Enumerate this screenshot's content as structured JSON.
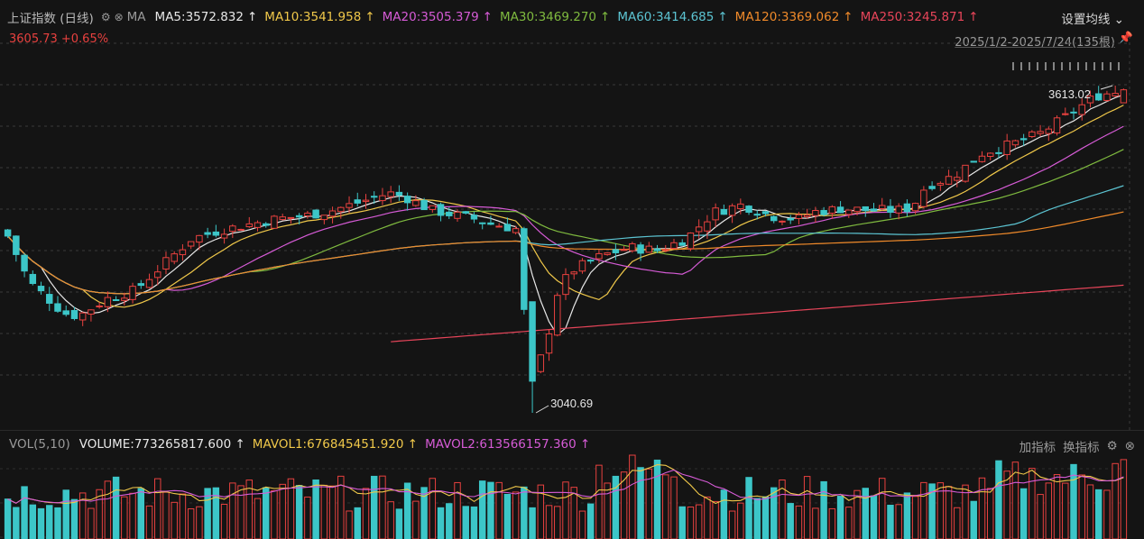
{
  "header": {
    "title": "上证指数 (日线)",
    "ma_label": "MA",
    "ma": [
      {
        "label": "MA5:3572.832",
        "color": "#e8e8e8"
      },
      {
        "label": "MA10:3541.958",
        "color": "#f0c84a"
      },
      {
        "label": "MA20:3505.379",
        "color": "#d65bd6"
      },
      {
        "label": "MA30:3469.270",
        "color": "#7fba3f"
      },
      {
        "label": "MA60:3414.685",
        "color": "#5cc4d2"
      },
      {
        "label": "MA120:3369.062",
        "color": "#f08a2a"
      },
      {
        "label": "MA250:3245.871",
        "color": "#e8455a"
      }
    ],
    "arrow": "↑",
    "settings": "设置均线 ⌄",
    "price": "3605.73  +0.65%",
    "range": "2025/1/2-2025/7/24(135根)"
  },
  "volume_header": {
    "name": "VOL(5,10)",
    "items": [
      {
        "label": "VOLUME:773265817.600",
        "color": "#e8e8e8"
      },
      {
        "label": "MAVOL1:676845451.920",
        "color": "#f0c84a"
      },
      {
        "label": "MAVOL2:613566157.360",
        "color": "#d65bd6"
      }
    ],
    "add_label": "加指标",
    "switch_label": "换指标"
  },
  "chart_data": {
    "type": "candlestick",
    "x_range": [
      "2025/1/2",
      "2025/7/24"
    ],
    "bar_count": 135,
    "y_range": [
      3040.69,
      3613.02
    ],
    "annotations": [
      {
        "text": "3613.02",
        "kind": "high"
      },
      {
        "text": "3040.69",
        "kind": "low"
      }
    ],
    "colors": {
      "up": "#e8413f",
      "down": "#3cc6c8"
    },
    "last_close": 3605.73,
    "change_pct": 0.65,
    "volume_last": 773265817.6,
    "mavol1": 676845451.92,
    "mavol2": 613566157.36
  }
}
